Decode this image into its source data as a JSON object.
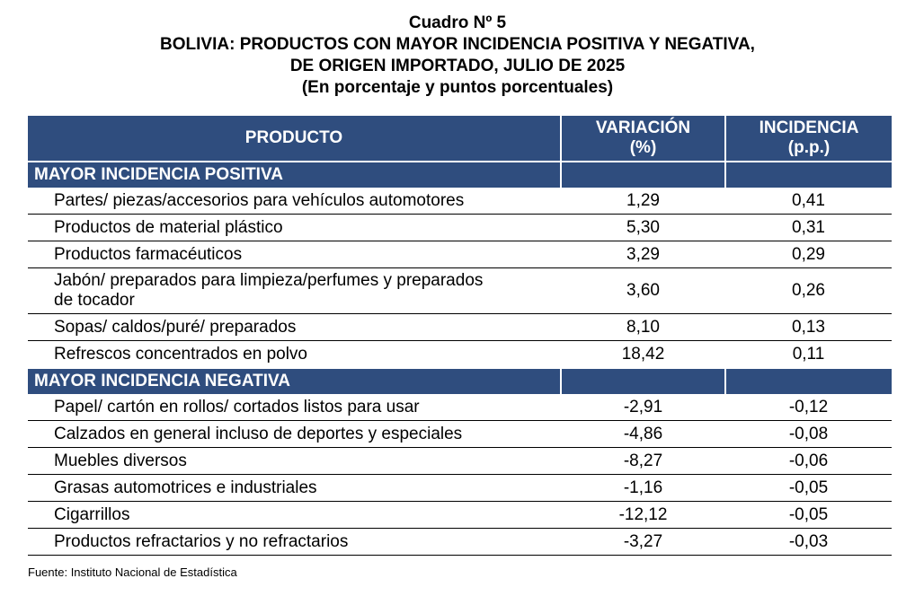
{
  "title": {
    "line1": "Cuadro Nº 5",
    "line2": "BOLIVIA: PRODUCTOS CON MAYOR INCIDENCIA POSITIVA Y NEGATIVA,",
    "line3": "DE ORIGEN IMPORTADO, JULIO DE 2025",
    "line4": "(En porcentaje y puntos porcentuales)"
  },
  "headers": {
    "producto": "PRODUCTO",
    "variacion_1": "VARIACIÓN",
    "variacion_2": "(%)",
    "incidencia_1": "INCIDENCIA",
    "incidencia_2": "(p.p.)"
  },
  "sections": [
    {
      "label": "MAYOR INCIDENCIA POSITIVA",
      "rows": [
        {
          "producto": "Partes/ piezas/accesorios para vehículos automotores",
          "variacion": "1,29",
          "incidencia": "0,41"
        },
        {
          "producto": "Productos de material plástico",
          "variacion": "5,30",
          "incidencia": "0,31"
        },
        {
          "producto": "Productos farmacéuticos",
          "variacion": "3,29",
          "incidencia": "0,29"
        },
        {
          "producto_1": "Jabón/ preparados para limpieza/perfumes y preparados",
          "producto_2": "de tocador",
          "variacion": "3,60",
          "incidencia": "0,26"
        },
        {
          "producto": "Sopas/ caldos/puré/ preparados",
          "variacion": "8,10",
          "incidencia": "0,13"
        },
        {
          "producto": "Refrescos concentrados en polvo",
          "variacion": "18,42",
          "incidencia": "0,11"
        }
      ]
    },
    {
      "label": "MAYOR INCIDENCIA NEGATIVA",
      "rows": [
        {
          "producto": "Papel/ cartón en rollos/ cortados listos para usar",
          "variacion": "-2,91",
          "incidencia": "-0,12"
        },
        {
          "producto": "Calzados en general incluso de deportes y especiales",
          "variacion": "-4,86",
          "incidencia": "-0,08"
        },
        {
          "producto": "Muebles diversos",
          "variacion": "-8,27",
          "incidencia": "-0,06"
        },
        {
          "producto": "Grasas automotrices e industriales",
          "variacion": "-1,16",
          "incidencia": "-0,05"
        },
        {
          "producto": "Cigarrillos",
          "variacion": "-12,12",
          "incidencia": "-0,05"
        },
        {
          "producto": "Productos refractarios y no refractarios",
          "variacion": "-3,27",
          "incidencia": "-0,03"
        }
      ]
    }
  ],
  "source": "Fuente: Instituto Nacional de Estadística",
  "colors": {
    "header_bg": "#2f4d7e",
    "header_text": "#ffffff"
  }
}
